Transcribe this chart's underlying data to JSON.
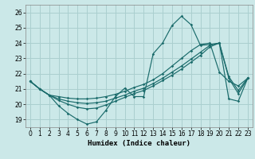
{
  "xlabel": "Humidex (Indice chaleur)",
  "bg_color": "#cbe8e8",
  "grid_color": "#aacfcf",
  "line_color": "#1a6b6b",
  "xlim": [
    -0.5,
    23.5
  ],
  "ylim": [
    18.5,
    26.5
  ],
  "xticks": [
    0,
    1,
    2,
    3,
    4,
    5,
    6,
    7,
    8,
    9,
    10,
    11,
    12,
    13,
    14,
    15,
    16,
    17,
    18,
    19,
    20,
    21,
    22,
    23
  ],
  "yticks": [
    19,
    20,
    21,
    22,
    23,
    24,
    25,
    26
  ],
  "line1_x": [
    0,
    1,
    2,
    3,
    4,
    5,
    6,
    7,
    8,
    9,
    10,
    11,
    12,
    13,
    14,
    15,
    16,
    17,
    18,
    19,
    20,
    21,
    22,
    23
  ],
  "line1_y": [
    21.5,
    21.0,
    20.6,
    19.9,
    19.4,
    19.0,
    18.7,
    18.85,
    19.6,
    20.5,
    21.05,
    20.5,
    20.5,
    23.3,
    24.0,
    25.15,
    25.75,
    25.2,
    23.85,
    23.9,
    24.0,
    20.35,
    20.2,
    21.7
  ],
  "line2_x": [
    0,
    1,
    2,
    3,
    4,
    5,
    6,
    7,
    8,
    9,
    10,
    11,
    12,
    13,
    14,
    15,
    16,
    17,
    18,
    19,
    20,
    21,
    22,
    23
  ],
  "line2_y": [
    21.5,
    21.0,
    20.6,
    20.5,
    20.4,
    20.35,
    20.35,
    20.4,
    20.5,
    20.65,
    20.85,
    21.1,
    21.3,
    21.6,
    22.0,
    22.5,
    23.0,
    23.5,
    23.9,
    24.0,
    22.1,
    21.5,
    21.2,
    21.7
  ],
  "line3_x": [
    0,
    1,
    2,
    3,
    4,
    5,
    6,
    7,
    8,
    9,
    10,
    11,
    12,
    13,
    14,
    15,
    16,
    17,
    18,
    19,
    20,
    21,
    22,
    23
  ],
  "line3_y": [
    21.5,
    21.0,
    20.6,
    20.35,
    20.2,
    20.1,
    20.05,
    20.1,
    20.2,
    20.4,
    20.6,
    20.85,
    21.05,
    21.35,
    21.7,
    22.1,
    22.5,
    22.95,
    23.4,
    23.85,
    24.0,
    21.8,
    20.9,
    21.7
  ],
  "line4_x": [
    0,
    1,
    2,
    3,
    4,
    5,
    6,
    7,
    8,
    9,
    10,
    11,
    12,
    13,
    14,
    15,
    16,
    17,
    18,
    19,
    20,
    21,
    22,
    23
  ],
  "line4_y": [
    21.5,
    21.0,
    20.6,
    20.25,
    20.0,
    19.8,
    19.7,
    19.75,
    19.95,
    20.2,
    20.45,
    20.7,
    20.9,
    21.2,
    21.55,
    21.9,
    22.3,
    22.75,
    23.2,
    23.75,
    24.0,
    21.7,
    20.7,
    21.7
  ]
}
